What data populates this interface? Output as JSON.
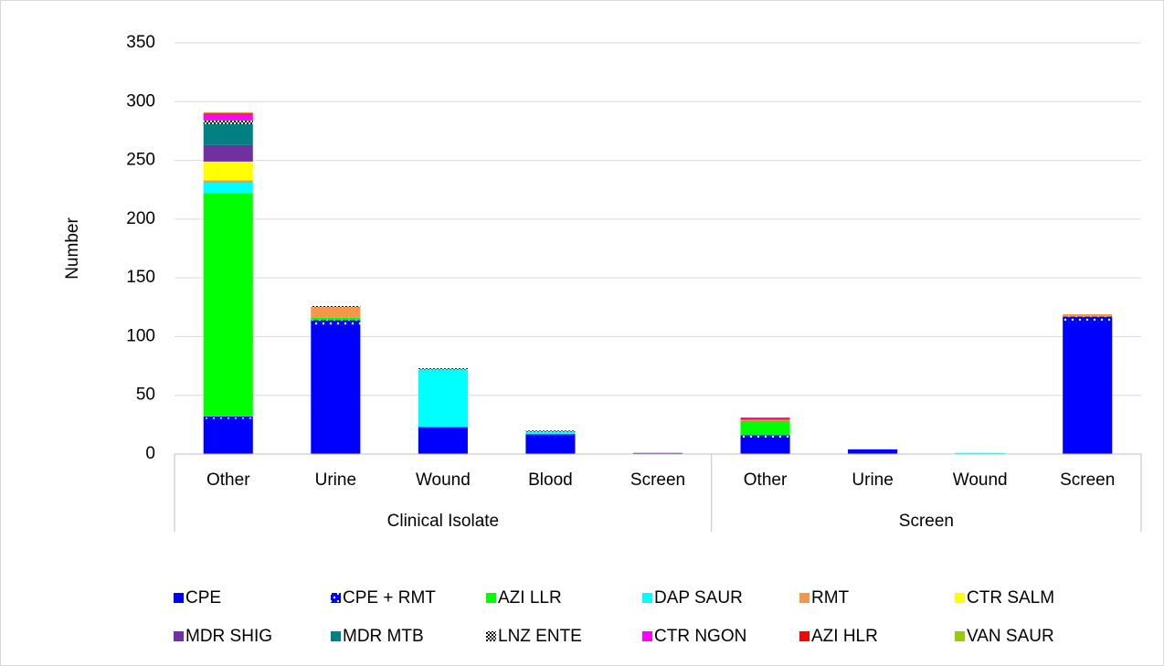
{
  "chart_data": {
    "type": "stacked_bar",
    "y_label": "Number",
    "groups": [
      {
        "label": "Clinical Isolate",
        "categories": [
          "Other",
          "Urine",
          "Wound",
          "Blood",
          "Screen"
        ]
      },
      {
        "label": "Screen",
        "categories": [
          "Other",
          "Urine",
          "Wound",
          "Screen"
        ]
      }
    ],
    "series": [
      {
        "name": "CPE",
        "color": "#0000ff",
        "values": [
          30,
          110,
          22,
          16,
          0,
          14,
          4,
          0,
          112
        ]
      },
      {
        "name": "CPE + RMT",
        "color": "#0000ff",
        "pattern": "dots",
        "values": [
          2,
          4,
          1,
          1,
          0,
          2,
          0,
          0,
          5
        ]
      },
      {
        "name": "AZI LLR",
        "color": "#00ff00",
        "values": [
          190,
          2,
          0,
          0,
          0,
          12,
          0,
          0,
          0
        ]
      },
      {
        "name": "DAP SAUR",
        "color": "#00ffff",
        "values": [
          9,
          0,
          49,
          2,
          0,
          0,
          0,
          1,
          0
        ]
      },
      {
        "name": "RMT",
        "color": "#f79646",
        "values": [
          2,
          9,
          0,
          0,
          0,
          1,
          0,
          0,
          2
        ]
      },
      {
        "name": "CTR SALM",
        "color": "#ffff00",
        "values": [
          16,
          0,
          0,
          0,
          0,
          0,
          0,
          0,
          0
        ]
      },
      {
        "name": "MDR SHIG",
        "color": "#7030a0",
        "values": [
          14,
          0,
          0,
          0,
          1,
          0,
          0,
          0,
          0
        ]
      },
      {
        "name": "MDR MTB",
        "color": "#008080",
        "values": [
          18,
          0,
          0,
          0,
          0,
          0,
          0,
          0,
          0
        ]
      },
      {
        "name": "LNZ ENTE",
        "color": "#000000",
        "pattern": "checker",
        "values": [
          3,
          1,
          1,
          1,
          0,
          0,
          0,
          0,
          0
        ]
      },
      {
        "name": "CTR NGON",
        "color": "#ff00ff",
        "values": [
          5,
          0,
          0,
          0,
          0,
          1,
          0,
          0,
          0
        ]
      },
      {
        "name": "AZI HLR",
        "color": "#ff0000",
        "values": [
          1,
          0,
          0,
          0,
          0,
          1,
          0,
          0,
          0
        ]
      },
      {
        "name": "VAN SAUR",
        "color": "#99cc00",
        "values": [
          1,
          0,
          0,
          0,
          0,
          0,
          0,
          0,
          0
        ]
      }
    ],
    "ylim": [
      0,
      350
    ],
    "yticks": [
      0,
      50,
      100,
      150,
      200,
      250,
      300,
      350
    ],
    "grid": true,
    "legend": "bottom"
  }
}
